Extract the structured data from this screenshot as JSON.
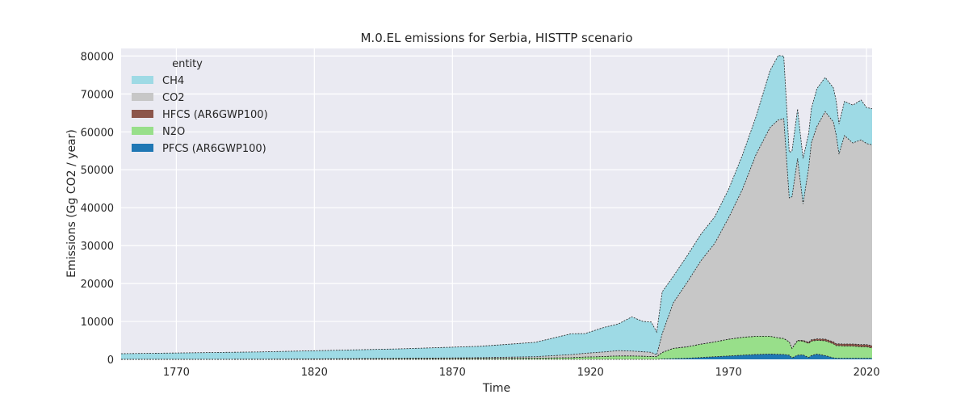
{
  "chart_data": {
    "type": "area",
    "stacked": true,
    "title": "M.0.EL emissions for Serbia, HISTTP scenario",
    "xlabel": "Time",
    "ylabel": "Emissions (Gg CO2 / year)",
    "xlim": [
      1750,
      2022
    ],
    "ylim": [
      0,
      82000
    ],
    "xticks": [
      1770,
      1820,
      1870,
      1920,
      1970,
      2020
    ],
    "yticks": [
      0,
      10000,
      20000,
      30000,
      40000,
      50000,
      60000,
      70000,
      80000
    ],
    "grid": true,
    "legend": {
      "title": "entity",
      "position": "top-left"
    },
    "x": [
      1750,
      1800,
      1850,
      1880,
      1900,
      1913,
      1918,
      1925,
      1930,
      1935,
      1939,
      1942,
      1944,
      1946,
      1950,
      1955,
      1960,
      1965,
      1970,
      1975,
      1980,
      1985,
      1988,
      1990,
      1992,
      1993,
      1995,
      1997,
      1999,
      2000,
      2002,
      2005,
      2008,
      2009,
      2010,
      2012,
      2015,
      2018,
      2020,
      2022
    ],
    "series": [
      {
        "name": "PFCS (AR6GWP100)",
        "color": "#1f77b4",
        "values": [
          0,
          0,
          0,
          0,
          0,
          0,
          0,
          0,
          0,
          0,
          0,
          0,
          0,
          100,
          200,
          300,
          500,
          700,
          900,
          1100,
          1300,
          1400,
          1350,
          1300,
          1100,
          400,
          1100,
          1200,
          500,
          1000,
          1400,
          1000,
          400,
          300,
          300,
          300,
          300,
          300,
          300,
          300
        ]
      },
      {
        "name": "N2O",
        "color": "#98df8a",
        "values": [
          0,
          0,
          100,
          200,
          300,
          450,
          600,
          750,
          900,
          900,
          800,
          750,
          700,
          1700,
          2700,
          3000,
          3500,
          3900,
          4400,
          4700,
          4800,
          4700,
          4300,
          4200,
          3500,
          2500,
          3800,
          3600,
          3700,
          3800,
          3600,
          3900,
          3700,
          3300,
          3300,
          3200,
          3200,
          3000,
          3000,
          2700
        ]
      },
      {
        "name": "HFCS (AR6GWP100)",
        "color": "#8c564b",
        "values": [
          0,
          0,
          0,
          0,
          0,
          0,
          0,
          0,
          0,
          0,
          0,
          0,
          0,
          0,
          0,
          0,
          0,
          0,
          0,
          0,
          0,
          0,
          0,
          0,
          0,
          0,
          100,
          200,
          300,
          350,
          400,
          450,
          500,
          500,
          500,
          550,
          550,
          600,
          600,
          600
        ]
      },
      {
        "name": "CO2",
        "color": "#c7c7c7",
        "values": [
          0,
          50,
          150,
          250,
          400,
          800,
          1000,
          1200,
          1400,
          1300,
          1200,
          1100,
          500,
          5000,
          12000,
          17000,
          22000,
          26000,
          32000,
          39000,
          48000,
          55000,
          57500,
          58000,
          38000,
          40000,
          48000,
          36000,
          46000,
          52000,
          56000,
          60000,
          58000,
          55000,
          50000,
          55000,
          53000,
          54000,
          53000,
          53000
        ]
      },
      {
        "name": "CH4",
        "color": "#9edae5",
        "values": [
          1500,
          1900,
          2500,
          3000,
          3800,
          5500,
          5200,
          6500,
          7000,
          9000,
          8000,
          8000,
          6000,
          11000,
          7000,
          7000,
          7000,
          7000,
          7500,
          9000,
          10000,
          15000,
          17000,
          16500,
          12000,
          12000,
          13000,
          12000,
          9000,
          9000,
          10000,
          9000,
          9000,
          9000,
          8000,
          9000,
          10000,
          10500,
          9500,
          9500
        ]
      }
    ]
  }
}
